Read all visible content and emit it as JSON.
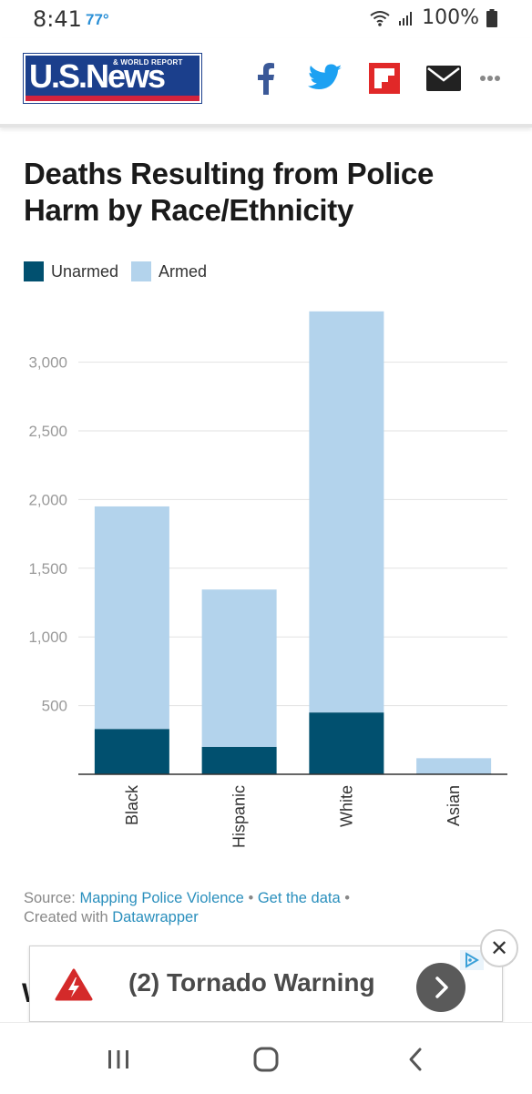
{
  "status_bar": {
    "time": "8:41",
    "temperature": "77°",
    "battery": "100%"
  },
  "header": {
    "logo_main": "U.S.News",
    "logo_sub": "& WORLD REPORT",
    "share_icons": [
      "facebook-icon",
      "twitter-icon",
      "flipboard-icon",
      "email-icon",
      "more-icon"
    ]
  },
  "article": {
    "chart_title": "Deaths Resulting from Police Harm by Race/Ethnicity"
  },
  "chart_data": {
    "type": "bar",
    "stacked": true,
    "categories": [
      "Black",
      "Hispanic",
      "White",
      "Asian"
    ],
    "series": [
      {
        "name": "Unarmed",
        "color": "#01506f",
        "values": [
          330,
          200,
          450,
          5
        ]
      },
      {
        "name": "Armed",
        "color": "#b3d3ec",
        "values": [
          1620,
          1145,
          2920,
          112
        ]
      }
    ],
    "ylim": [
      0,
      3400
    ],
    "yticks": [
      500,
      1000,
      1500,
      2000,
      2500,
      3000
    ],
    "ytick_labels": [
      "500",
      "1,000",
      "1,500",
      "2,000",
      "2,500",
      "3,000"
    ],
    "legend_position": "top-left",
    "grid": true
  },
  "source": {
    "prefix": "Source: ",
    "source_link": "Mapping Police Violence",
    "sep1": " • ",
    "data_link": "Get the data",
    "sep2": " •",
    "created_prefix": "Created with ",
    "created_link": "Datawrapper"
  },
  "ad": {
    "text": "(2) Tornado Warning",
    "close_label": "✕"
  },
  "peek_text": "W",
  "colors": {
    "unarmed": "#01506f",
    "armed": "#b3d3ec",
    "link": "#2a8fbd",
    "brand_blue": "#1b3f8c",
    "brand_red": "#d2233c"
  }
}
